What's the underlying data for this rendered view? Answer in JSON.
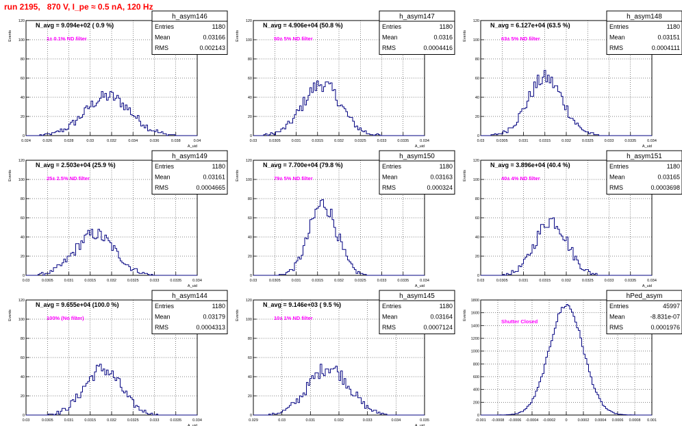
{
  "page": {
    "title": "run 2195,   870 V, I_pe ≈ 0.5 nA, 120 Hz"
  },
  "chart_data": [
    {
      "type": "bar",
      "title": "h_asym146",
      "xlabel": "A_uid",
      "ylabel": "Events",
      "xlim": [
        0.024,
        0.04
      ],
      "ylim": [
        0,
        120
      ],
      "xticks": [
        "0.024",
        "0.026",
        "0.028",
        "0.03",
        "0.032",
        "0.034",
        "0.036",
        "0.038",
        "0.04"
      ],
      "yticks": [
        "0",
        "20",
        "40",
        "60",
        "80",
        "100",
        "120"
      ],
      "grid": true,
      "nbins": 100,
      "stats": {
        "entries_label": "Entries",
        "entries": "1180",
        "mean_label": "Mean",
        "mean": "0.03166",
        "rms_label": "RMS",
        "rms": "0.002143"
      },
      "navg": "N_avg = 9.094e+02 ( 0.9 %)",
      "filter": "1± 0.1% ND filter",
      "shape": {
        "center": 0.03166,
        "sigma": 0.002143,
        "peak": 41
      },
      "series": [
        {
          "values": []
        }
      ]
    },
    {
      "type": "bar",
      "title": "h_asym147",
      "xlabel": "A_uid",
      "ylabel": "Events",
      "xlim": [
        0.03,
        0.034
      ],
      "ylim": [
        0,
        120
      ],
      "xticks": [
        "0.03",
        "0.0305",
        "0.031",
        "0.0315",
        "0.032",
        "0.0325",
        "0.033",
        "0.0335",
        "0.034"
      ],
      "yticks": [
        "0",
        "20",
        "40",
        "60",
        "80",
        "100",
        "120"
      ],
      "grid": true,
      "nbins": 100,
      "stats": {
        "entries_label": "Entries",
        "entries": "1180",
        "mean_label": "Mean",
        "mean": "0.0316",
        "rms_label": "RMS",
        "rms": "0.0004416"
      },
      "navg": "N_avg = 4.906e+04 (50.8 %)",
      "filter": "50± 5% ND filter",
      "shape": {
        "center": 0.0316,
        "sigma": 0.0004416,
        "peak": 54
      },
      "series": [
        {
          "values": []
        }
      ]
    },
    {
      "type": "bar",
      "title": "h_asym148",
      "xlabel": "A_uid",
      "ylabel": "Events",
      "xlim": [
        0.03,
        0.034
      ],
      "ylim": [
        0,
        120
      ],
      "xticks": [
        "0.03",
        "0.0305",
        "0.031",
        "0.0315",
        "0.032",
        "0.0325",
        "0.033",
        "0.0335",
        "0.034"
      ],
      "yticks": [
        "0",
        "20",
        "40",
        "60",
        "80",
        "100",
        "120"
      ],
      "grid": true,
      "nbins": 100,
      "stats": {
        "entries_label": "Entries",
        "entries": "1180",
        "mean_label": "Mean",
        "mean": "0.03151",
        "rms_label": "RMS",
        "rms": "0.0004111"
      },
      "navg": "N_avg = 6.127e+04 (63.5 %)",
      "filter": "63± 5% ND filter",
      "shape": {
        "center": 0.03151,
        "sigma": 0.0004111,
        "peak": 60
      },
      "series": [
        {
          "values": []
        }
      ]
    },
    {
      "type": "bar",
      "title": "h_asym149",
      "xlabel": "A_uid",
      "ylabel": "Events",
      "xlim": [
        0.03,
        0.034
      ],
      "ylim": [
        0,
        120
      ],
      "xticks": [
        "0.03",
        "0.0305",
        "0.031",
        "0.0315",
        "0.032",
        "0.0325",
        "0.033",
        "0.0335",
        "0.034"
      ],
      "yticks": [
        "0",
        "20",
        "40",
        "60",
        "80",
        "100",
        "120"
      ],
      "grid": true,
      "nbins": 100,
      "stats": {
        "entries_label": "Entries",
        "entries": "1180",
        "mean_label": "Mean",
        "mean": "0.03161",
        "rms_label": "RMS",
        "rms": "0.0004665"
      },
      "navg": "N_avg = 2.503e+04 (25.9 %)",
      "filter": "25± 2.5% ND filter",
      "shape": {
        "center": 0.03161,
        "sigma": 0.0004665,
        "peak": 43
      },
      "series": [
        {
          "values": []
        }
      ]
    },
    {
      "type": "bar",
      "title": "h_asym150",
      "xlabel": "A_uid",
      "ylabel": "Events",
      "xlim": [
        0.03,
        0.034
      ],
      "ylim": [
        0,
        120
      ],
      "xticks": [
        "0.03",
        "0.0305",
        "0.031",
        "0.0315",
        "0.032",
        "0.0325",
        "0.033",
        "0.0335",
        "0.034"
      ],
      "yticks": [
        "0",
        "20",
        "40",
        "60",
        "80",
        "100",
        "120"
      ],
      "grid": true,
      "nbins": 100,
      "stats": {
        "entries_label": "Entries",
        "entries": "1180",
        "mean_label": "Mean",
        "mean": "0.03163",
        "rms_label": "RMS",
        "rms": "0.000324"
      },
      "navg": "N_avg = 7.700e+04 (79.8 %)",
      "filter": "79± 5% ND filter",
      "shape": {
        "center": 0.03163,
        "sigma": 0.000324,
        "peak": 75
      },
      "series": [
        {
          "values": []
        }
      ]
    },
    {
      "type": "bar",
      "title": "h_asym151",
      "xlabel": "A_uid",
      "ylabel": "Events",
      "xlim": [
        0.03,
        0.034
      ],
      "ylim": [
        0,
        120
      ],
      "xticks": [
        "0.03",
        "0.0305",
        "0.031",
        "0.0315",
        "0.032",
        "0.0325",
        "0.033",
        "0.0335",
        "0.034"
      ],
      "yticks": [
        "0",
        "20",
        "40",
        "60",
        "80",
        "100",
        "120"
      ],
      "grid": true,
      "nbins": 100,
      "stats": {
        "entries_label": "Entries",
        "entries": "1180",
        "mean_label": "Mean",
        "mean": "0.03165",
        "rms_label": "RMS",
        "rms": "0.0003698"
      },
      "navg": "N_avg = 3.896e+04 (40.4 %)",
      "filter": "40± 4% ND filter",
      "shape": {
        "center": 0.03165,
        "sigma": 0.0003698,
        "peak": 58
      },
      "series": [
        {
          "values": []
        }
      ]
    },
    {
      "type": "bar",
      "title": "h_asym144",
      "xlabel": "A_uid",
      "ylabel": "Events",
      "xlim": [
        0.03,
        0.034
      ],
      "ylim": [
        0,
        120
      ],
      "xticks": [
        "0.03",
        "0.0305",
        "0.031",
        "0.0315",
        "0.032",
        "0.0325",
        "0.033",
        "0.0335",
        "0.034"
      ],
      "yticks": [
        "0",
        "20",
        "40",
        "60",
        "80",
        "100",
        "120"
      ],
      "grid": true,
      "nbins": 100,
      "stats": {
        "entries_label": "Entries",
        "entries": "1180",
        "mean_label": "Mean",
        "mean": "0.03179",
        "rms_label": "RMS",
        "rms": "0.0004313"
      },
      "navg": "N_avg = 9.655e+04 (100.0 %)",
      "filter": "100% (No filter)",
      "shape": {
        "center": 0.03179,
        "sigma": 0.0004313,
        "peak": 48
      },
      "series": [
        {
          "values": []
        }
      ]
    },
    {
      "type": "bar",
      "title": "h_asym145",
      "xlabel": "A_uid",
      "ylabel": "Events",
      "xlim": [
        0.029,
        0.035
      ],
      "ylim": [
        0,
        120
      ],
      "xticks": [
        "0.029",
        "0.03",
        "0.031",
        "0.032",
        "0.033",
        "0.034",
        "0.035"
      ],
      "yticks": [
        "0",
        "20",
        "40",
        "60",
        "80",
        "100",
        "120"
      ],
      "grid": true,
      "nbins": 100,
      "stats": {
        "entries_label": "Entries",
        "entries": "1180",
        "mean_label": "Mean",
        "mean": "0.03164",
        "rms_label": "RMS",
        "rms": "0.0007124"
      },
      "navg": "N_avg = 9.146e+03 ( 9.5 %)",
      "filter": "10± 1% ND filter",
      "shape": {
        "center": 0.03164,
        "sigma": 0.0007124,
        "peak": 50
      },
      "series": [
        {
          "values": []
        }
      ]
    },
    {
      "type": "bar",
      "title": "hPed_asym",
      "xlabel": "",
      "ylabel": "Events",
      "xlim": [
        -0.001,
        0.001
      ],
      "ylim": [
        0,
        1800
      ],
      "xticks": [
        "-0.001",
        "-0.0008",
        "-0.0006",
        "-0.0004",
        "-0.0002",
        "0",
        "0.0002",
        "0.0004",
        "0.0006",
        "0.0008",
        "0.001"
      ],
      "yticks": [
        "0",
        "200",
        "400",
        "600",
        "800",
        "1000",
        "1200",
        "1400",
        "1600",
        "1800"
      ],
      "grid": true,
      "nbins": 100,
      "stats": {
        "entries_label": "Entries",
        "entries": "45997",
        "mean_label": "Mean",
        "mean": "-8.831e-07",
        "rms_label": "RMS",
        "rms": "0.0001976"
      },
      "navg": "",
      "filter": "Shutter Closed",
      "shape": {
        "center": 0.0,
        "sigma": 0.0001976,
        "peak": 1720
      },
      "series": [
        {
          "values": []
        }
      ]
    }
  ]
}
